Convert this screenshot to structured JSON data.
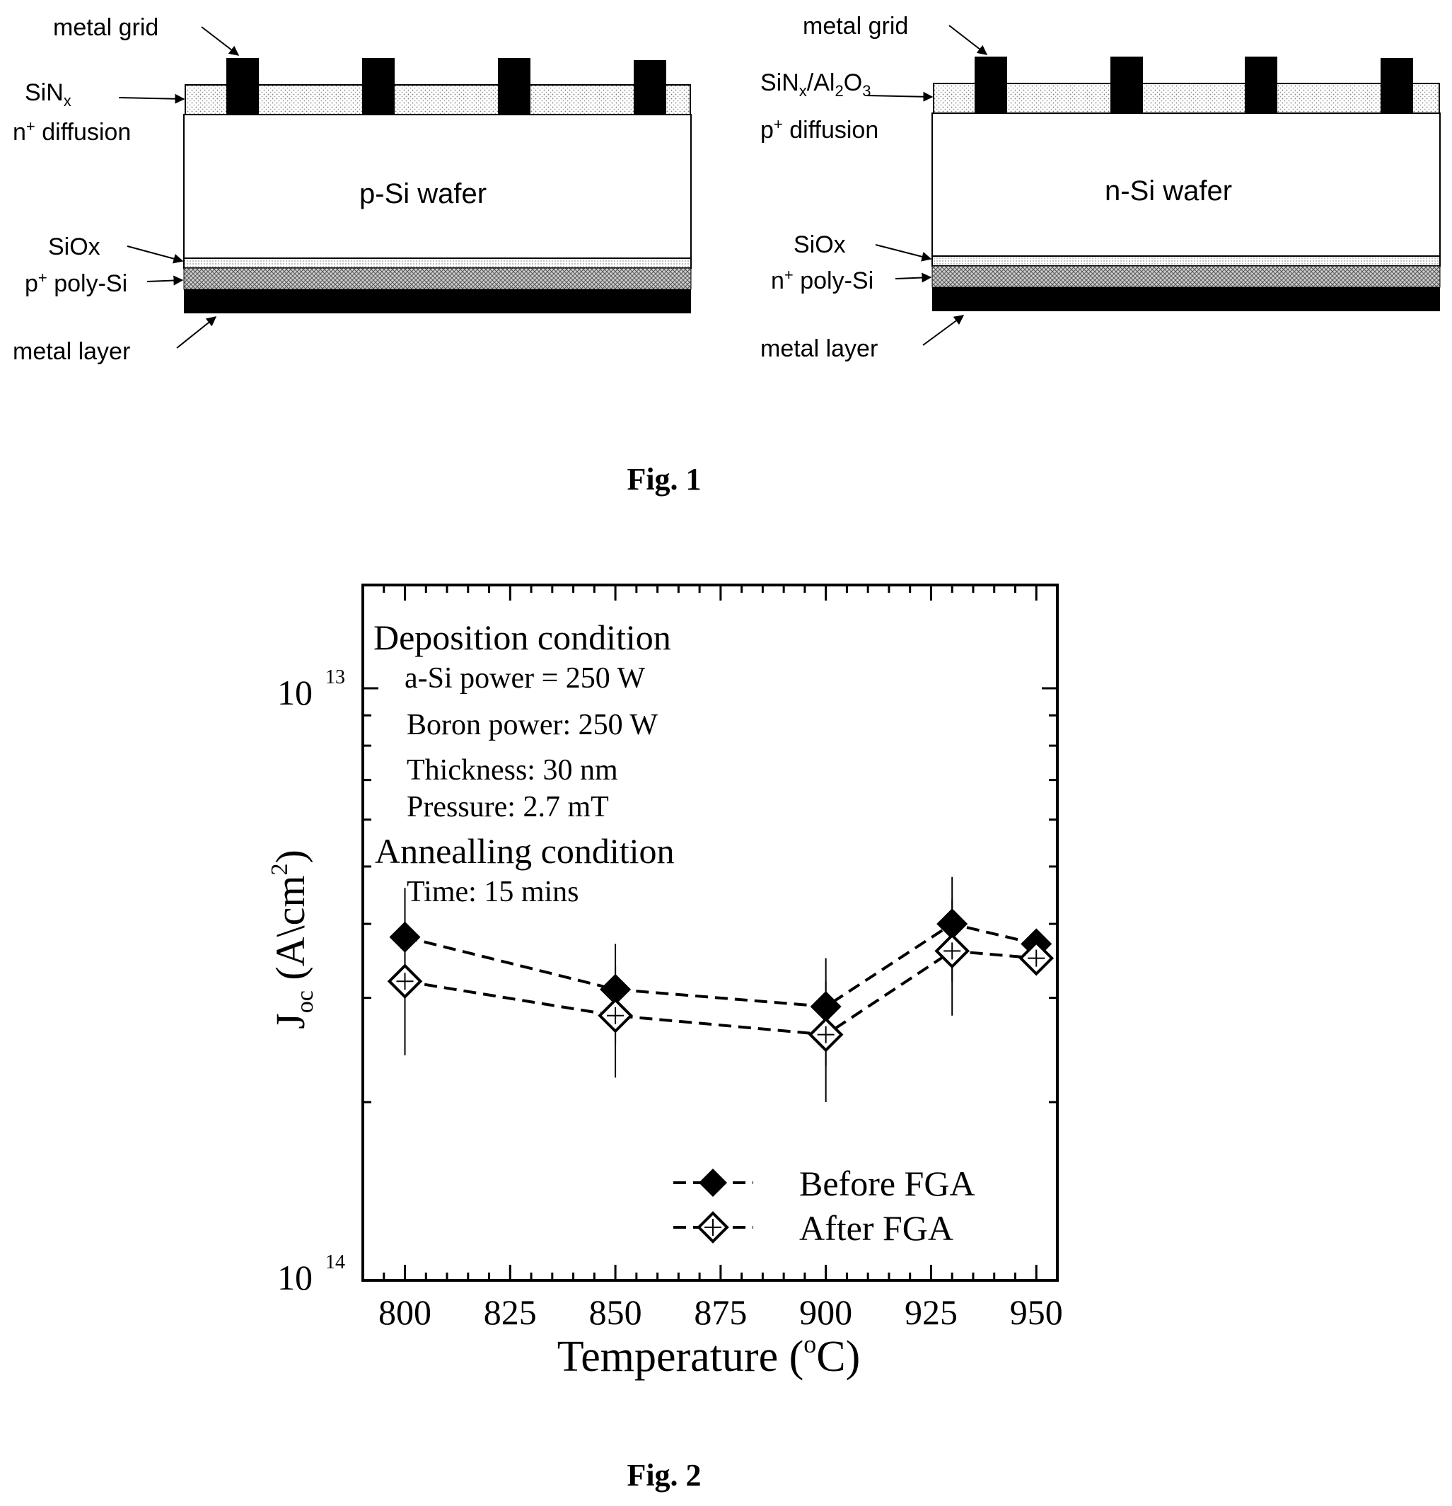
{
  "fig1": {
    "caption": "Fig. 1",
    "left": {
      "metal_grid": "metal grid",
      "passivation_main": "SiN",
      "passivation_sub": "x",
      "passivation_rest": "",
      "diffusion_sup": "+",
      "diffusion_pre": "n",
      "diffusion_rest": " diffusion",
      "wafer": "p-Si wafer",
      "oxide": "SiOx",
      "poly_pre": "p",
      "poly_sup": "+",
      "poly_rest": " poly-Si",
      "metal_layer": "metal layer"
    },
    "right": {
      "metal_grid": "metal grid",
      "passivation_a": "SiN",
      "passivation_a_sub": "x",
      "passivation_b": "/Al",
      "passivation_b_sub": "2",
      "passivation_c": "O",
      "passivation_c_sub": "3",
      "diffusion_pre": "p",
      "diffusion_sup": "+",
      "diffusion_rest": " diffusion",
      "wafer": "n-Si wafer",
      "oxide": "SiOx",
      "poly_pre": "n",
      "poly_sup": "+",
      "poly_rest": " poly-Si",
      "metal_layer": "metal layer"
    }
  },
  "fig2": {
    "caption": "Fig. 2",
    "annotations": {
      "dep_title": "Deposition condition",
      "dep_line1": "a-Si power = 250 W",
      "dep_line2": "Boron power: 250 W",
      "dep_line3": "Thickness: 30 nm",
      "dep_line4": "Pressure: 2.7 mT",
      "ann_title": "Annealling condition",
      "ann_line1": "Time: 15 mins"
    },
    "ytick_base": "10",
    "ytick_top_exp": "13",
    "ytick_bottom_exp": "14",
    "ylabel_main": "J",
    "ylabel_sub": "oc",
    "ylabel_rest": " (A\\cm",
    "ylabel_sup": "2",
    "ylabel_end": ")",
    "xlabel_main": "Temperature (",
    "xlabel_sup": "o",
    "xlabel_end": "C)"
  },
  "chart_data": {
    "type": "line",
    "x": [
      800,
      850,
      900,
      930,
      950
    ],
    "xticks": [
      "800",
      "825",
      "850",
      "875",
      "900",
      "925",
      "950"
    ],
    "xlim": [
      790,
      955
    ],
    "yscale": "log",
    "y_axis_inverted": true,
    "series": [
      {
        "name": "Before FGA",
        "marker": "filled-diamond",
        "line": "dashed",
        "values": [
          3.8e-14,
          3.1e-14,
          2.9e-14,
          4e-14,
          3.7e-14
        ],
        "error": [
          8e-15,
          6e-15,
          6e-15,
          8e-15,
          0
        ]
      },
      {
        "name": "After FGA",
        "marker": "open-diamond",
        "line": "dashed",
        "values": [
          3.2e-14,
          2.8e-14,
          2.6e-14,
          3.6e-14,
          3.5e-14
        ],
        "error": [
          8e-15,
          6e-15,
          6e-15,
          8e-15,
          0
        ]
      }
    ],
    "legend": "bottom-right",
    "grid": false
  }
}
